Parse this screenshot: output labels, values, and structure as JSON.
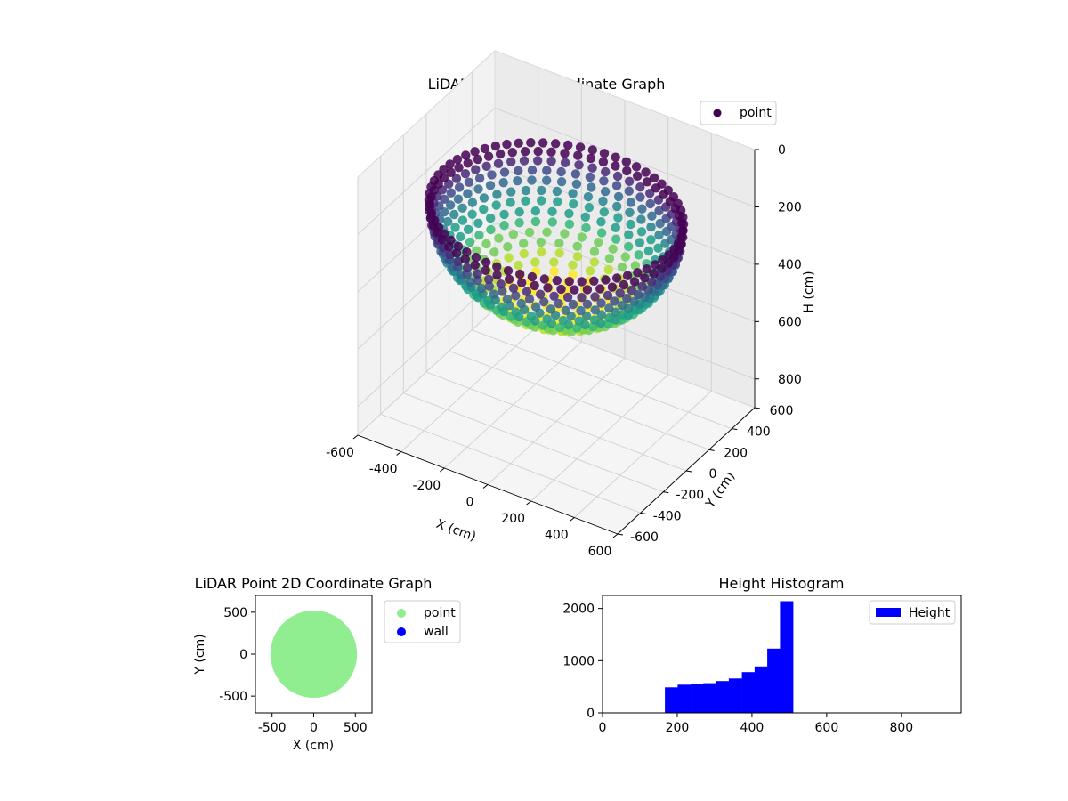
{
  "chart_data": [
    {
      "type": "scatter",
      "projection": "3d",
      "title": "LiDAR Point 3D Coordinate Graph",
      "xlabel": "X (cm)",
      "ylabel": "Y (cm)",
      "zlabel": "H (cm)",
      "xlim": [
        -600,
        600
      ],
      "ylim": [
        -600,
        600
      ],
      "zlim": [
        900,
        0
      ],
      "x_ticks": [
        -600,
        -400,
        -200,
        0,
        200,
        400,
        600
      ],
      "y_ticks": [
        -600,
        -400,
        -200,
        0,
        200,
        400,
        600
      ],
      "z_ticks": [
        0,
        200,
        400,
        600,
        800
      ],
      "zaxis_inverted": true,
      "colormap": "viridis",
      "grid": true,
      "legend": {
        "placement": "top-right",
        "entries": [
          {
            "name": "point",
            "color": "#440154"
          }
        ]
      },
      "shape": {
        "kind": "bowl",
        "center": [
          0,
          0
        ],
        "rim_radius": 520,
        "rim_height": 170,
        "bottom_height": 510
      }
    },
    {
      "type": "scatter",
      "title": "LiDAR Point 2D Coordinate Graph",
      "xlabel": "X (cm)",
      "ylabel": "Y (cm)",
      "xlim": [
        -700,
        700
      ],
      "ylim": [
        -700,
        700
      ],
      "x_ticks": [
        -500,
        0,
        500
      ],
      "y_ticks": [
        -500,
        0,
        500
      ],
      "legend": {
        "placement": "outside-right",
        "entries": [
          {
            "name": "point",
            "color": "#90ee90"
          },
          {
            "name": "wall",
            "color": "#0000ff"
          }
        ]
      },
      "shape": {
        "kind": "disk",
        "center": [
          0,
          0
        ],
        "radius": 520
      }
    },
    {
      "type": "bar",
      "subtype": "histogram",
      "title": "Height Histogram",
      "xlim": [
        0,
        960
      ],
      "ylim": [
        0,
        2250
      ],
      "x_ticks": [
        0,
        200,
        400,
        600,
        800
      ],
      "y_ticks": [
        0,
        1000,
        2000
      ],
      "color": "#0000ff",
      "legend": {
        "placement": "top-right",
        "entries": [
          {
            "name": "Height",
            "color": "#0000ff"
          }
        ]
      },
      "bin_edges": [
        167,
        201,
        236,
        270,
        304,
        338,
        373,
        407,
        441,
        475,
        510
      ],
      "values": [
        490,
        540,
        550,
        570,
        610,
        660,
        780,
        890,
        1230,
        2140
      ]
    }
  ]
}
